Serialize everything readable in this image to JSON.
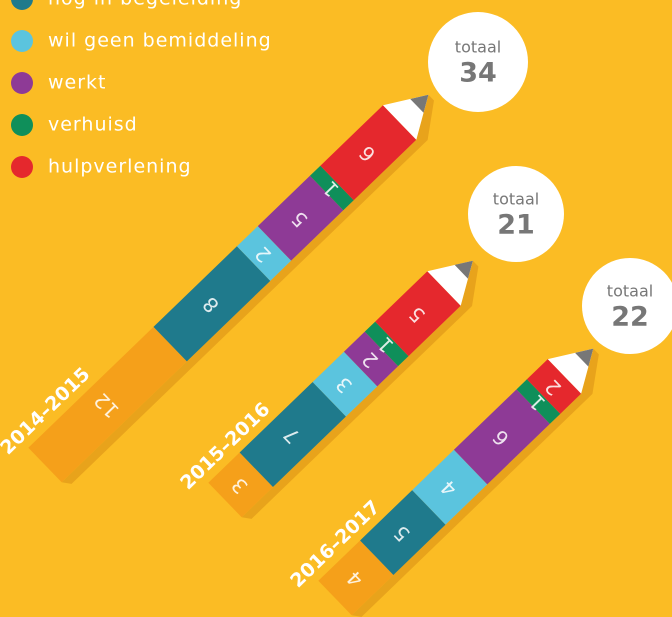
{
  "chart_data": {
    "type": "pencil-stacked-bar",
    "categories": [
      "2014–2015",
      "2015–2016",
      "2016–2017"
    ],
    "series": [
      {
        "name": null,
        "color": "#f5a01a",
        "values": [
          12,
          3,
          4
        ]
      },
      {
        "name": "nog in begeleiding",
        "color": "#1f7a8c",
        "values": [
          8,
          7,
          5
        ]
      },
      {
        "name": "wil geen bemiddeling",
        "color": "#5bc4de",
        "values": [
          2,
          3,
          4
        ]
      },
      {
        "name": "werkt",
        "color": "#8e3a96",
        "values": [
          5,
          2,
          6
        ]
      },
      {
        "name": "verhuisd",
        "color": "#0f8f5a",
        "values": [
          1,
          1,
          1
        ]
      },
      {
        "name": "hulpverlening",
        "color": "#e5282d",
        "values": [
          6,
          5,
          2
        ]
      }
    ],
    "total_label": "totaal",
    "totals": [
      34,
      21,
      22
    ]
  }
}
